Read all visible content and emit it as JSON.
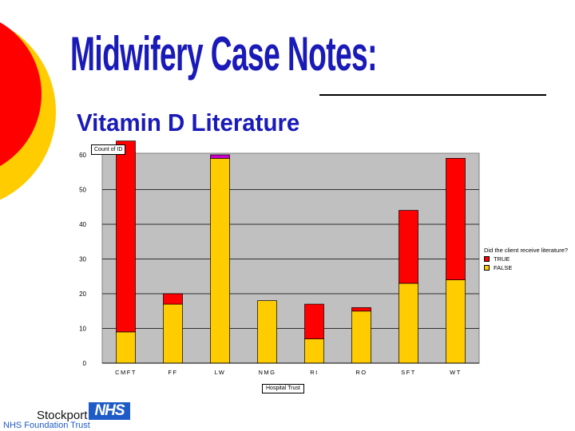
{
  "slide": {
    "title": "Midwifery Case Notes:",
    "subtitle": "Vitamin D Literature",
    "colors": {
      "title": "#1a1ab8",
      "circle_outer": "#ffcc00",
      "circle_inner": "#ff0000"
    }
  },
  "chart_data": {
    "type": "bar",
    "stacked": true,
    "field_button": "Count of ID",
    "xlabel": "Hospital Trust",
    "ylabel": "",
    "ylim": [
      0,
      60
    ],
    "yticks": [
      0,
      10,
      20,
      30,
      40,
      50,
      60
    ],
    "top_tick_label": "60",
    "grid": true,
    "legend_position": "right",
    "legend_title": "Did the client receive literature?",
    "categories": [
      "CMFT",
      "FF",
      "LW",
      "NMG",
      "RI",
      "RO",
      "SFT",
      "WT"
    ],
    "series": [
      {
        "name": "FALSE",
        "color": "#ffcc00",
        "values": [
          9,
          17,
          59,
          18,
          7,
          15,
          23,
          24
        ]
      },
      {
        "name": "TRUE",
        "color": "#ff0000",
        "values": [
          55,
          3,
          0,
          0,
          10,
          1,
          21,
          35
        ]
      }
    ],
    "extra_segments": [
      {
        "category": "LW",
        "color": "#cc00cc",
        "value": 1
      }
    ],
    "legend": [
      {
        "label": "TRUE",
        "color": "#ff0000"
      },
      {
        "label": "FALSE",
        "color": "#ffcc00"
      }
    ],
    "plot_background": "#c0c0c0"
  },
  "logo": {
    "word": "Stockport",
    "badge": "NHS",
    "subline": "NHS Foundation Trust",
    "color": "#1e5bc6"
  }
}
